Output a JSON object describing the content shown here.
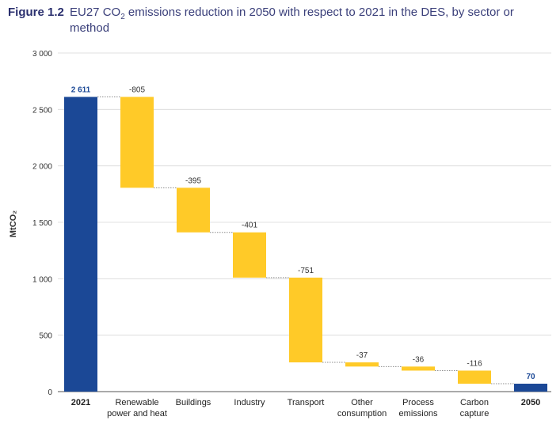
{
  "figure": {
    "label": "Figure 1.2",
    "title_part1": "EU27 CO",
    "title_sub": "2",
    "title_part2": " emissions reduction in 2050 with respect to 2021 in the DES, by sector or method"
  },
  "colors": {
    "total_bar": "#1b4896",
    "change_bar": "#ffca28",
    "grid": "#d9d9d9",
    "axis_text": "#333333",
    "total_label": "#1b4896",
    "connector": "#8c8c8c"
  },
  "chart_data": {
    "type": "waterfall",
    "title": "EU27 CO2 emissions reduction in 2050 with respect to 2021 in the DES, by sector or method",
    "ylabel": "MtCO₂",
    "ylim": [
      0,
      3000
    ],
    "yticks": [
      0,
      500,
      1000,
      1500,
      2000,
      2500,
      3000
    ],
    "ytick_labels": [
      "0",
      "500",
      "1 000",
      "1 500",
      "2 000",
      "2 500",
      "3 000"
    ],
    "grid": true,
    "categories": [
      [
        "2021"
      ],
      [
        "Renewable",
        "power and heat"
      ],
      [
        "Buildings"
      ],
      [
        "Industry"
      ],
      [
        "Transport"
      ],
      [
        "Other",
        "consumption"
      ],
      [
        "Process",
        "emissions"
      ],
      [
        "Carbon",
        "capture"
      ],
      [
        "2050"
      ]
    ],
    "values": [
      2611,
      -805,
      -395,
      -401,
      -751,
      -37,
      -36,
      -116,
      70
    ],
    "kinds": [
      "total",
      "change",
      "change",
      "change",
      "change",
      "change",
      "change",
      "change",
      "total"
    ],
    "value_labels": [
      "2 611",
      "-805",
      "-395",
      "-401",
      "-751",
      "-37",
      "-36",
      "-116",
      "70"
    ]
  }
}
